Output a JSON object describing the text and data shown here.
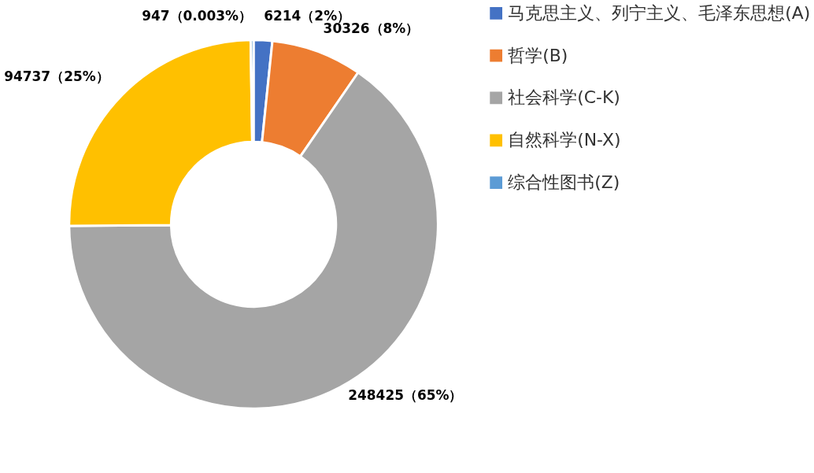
{
  "chart_data": {
    "type": "donut",
    "categories": [
      "马克思主义、列宁主义、毛泽东思想(A)",
      "哲学(B)",
      "社会科学(C-K)",
      "自然科学(N-X)",
      "综合性图书(Z)"
    ],
    "values": [
      6214,
      30326,
      248425,
      94737,
      947
    ],
    "colors": [
      "#4472c4",
      "#ed7d31",
      "#a5a5a5",
      "#ffc000",
      "#5b9bd5"
    ],
    "value_labels": [
      "6214（2%）",
      "30326（8%）",
      "248425（65%）",
      "94737（25%）",
      "947（0.003%）"
    ],
    "legend": "right"
  }
}
